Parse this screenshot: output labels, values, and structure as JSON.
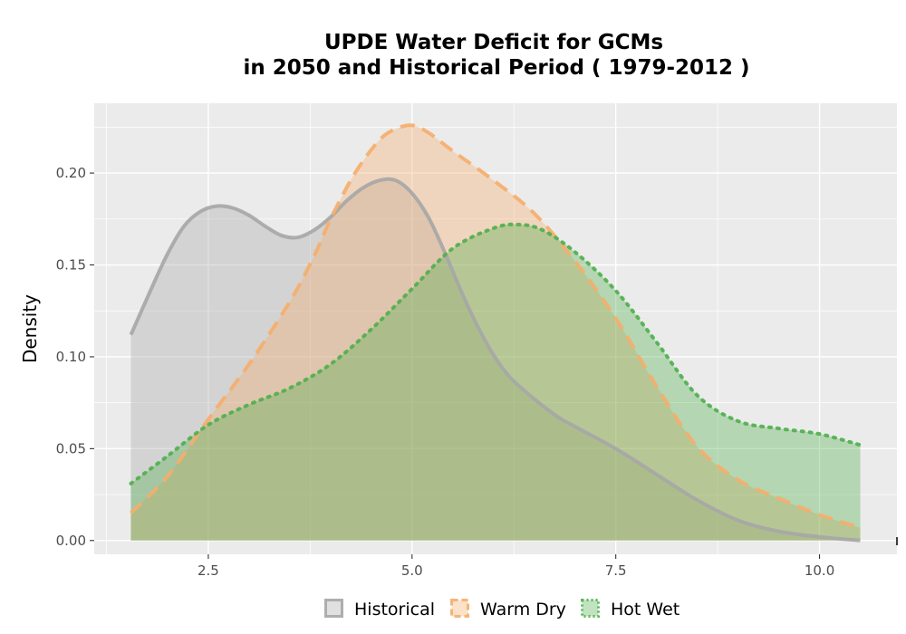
{
  "chart_data": {
    "type": "area",
    "title_lines": [
      "UPDE  Water Deficit for GCMs",
      "in 2050 and Historical Period ( 1979-2012 )"
    ],
    "xlabel": "",
    "ylabel": "Density",
    "xlim": [
      1.1,
      10.95
    ],
    "ylim": [
      -0.0075,
      0.238
    ],
    "x_ticks": [
      2.5,
      5.0,
      7.5,
      10.0
    ],
    "x_tick_labels": [
      "2.5",
      "5.0",
      "7.5",
      "10.0"
    ],
    "y_ticks": [
      0.0,
      0.05,
      0.1,
      0.15,
      0.2
    ],
    "y_tick_labels": [
      "0.00",
      "0.05",
      "0.10",
      "0.15",
      "0.20"
    ],
    "grid": true,
    "legend_position": "bottom",
    "series": [
      {
        "name": "Historical",
        "fill": "#a6a6a6",
        "line": "#a6a6a6",
        "dash": "solid",
        "x": [
          1.55,
          1.8,
          2.0,
          2.2,
          2.4,
          2.6,
          2.8,
          3.0,
          3.2,
          3.4,
          3.6,
          3.8,
          4.0,
          4.2,
          4.4,
          4.6,
          4.8,
          5.0,
          5.2,
          5.4,
          5.6,
          5.8,
          6.0,
          6.2,
          6.5,
          6.8,
          7.0,
          7.5,
          8.0,
          8.5,
          9.0,
          9.5,
          10.0,
          10.5
        ],
        "y": [
          0.112,
          0.137,
          0.156,
          0.171,
          0.179,
          0.182,
          0.181,
          0.177,
          0.171,
          0.166,
          0.165,
          0.169,
          0.176,
          0.185,
          0.192,
          0.196,
          0.196,
          0.189,
          0.176,
          0.157,
          0.136,
          0.117,
          0.101,
          0.089,
          0.077,
          0.067,
          0.062,
          0.05,
          0.036,
          0.022,
          0.011,
          0.005,
          0.002,
          0.0
        ]
      },
      {
        "name": "Warm Dry",
        "fill": "#f6ad6a",
        "line": "#f6ad6a",
        "dash": "dashed",
        "x": [
          1.55,
          2.0,
          2.5,
          3.0,
          3.5,
          3.8,
          4.0,
          4.3,
          4.6,
          4.8,
          5.0,
          5.2,
          5.5,
          6.0,
          6.5,
          7.0,
          7.5,
          8.0,
          8.5,
          9.0,
          9.5,
          10.0,
          10.5
        ],
        "y": [
          0.015,
          0.035,
          0.066,
          0.096,
          0.13,
          0.155,
          0.175,
          0.2,
          0.218,
          0.224,
          0.226,
          0.222,
          0.212,
          0.196,
          0.178,
          0.152,
          0.121,
          0.084,
          0.051,
          0.033,
          0.023,
          0.014,
          0.007
        ]
      },
      {
        "name": "Hot Wet",
        "fill": "#4daf4a",
        "line": "#4daf4a",
        "dash": "dotted",
        "x": [
          1.55,
          2.0,
          2.5,
          3.0,
          3.5,
          4.0,
          4.5,
          5.0,
          5.5,
          6.0,
          6.3,
          6.6,
          7.0,
          7.5,
          8.0,
          8.5,
          9.0,
          9.5,
          10.0,
          10.5
        ],
        "y": [
          0.031,
          0.046,
          0.063,
          0.074,
          0.083,
          0.096,
          0.115,
          0.137,
          0.159,
          0.17,
          0.172,
          0.169,
          0.157,
          0.136,
          0.108,
          0.079,
          0.065,
          0.061,
          0.058,
          0.052
        ]
      }
    ]
  }
}
